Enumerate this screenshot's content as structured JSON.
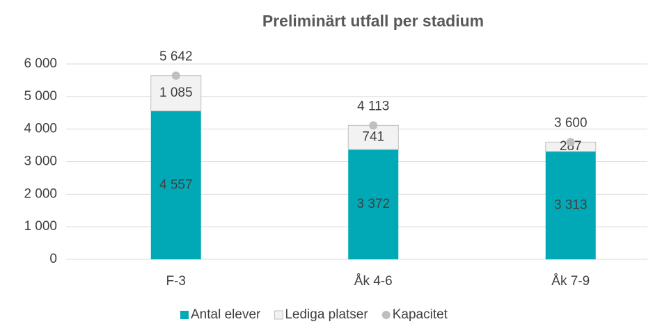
{
  "chart_data": {
    "type": "bar",
    "stacked": true,
    "title": "Preliminärt utfall per stadium",
    "categories": [
      "F-3",
      "Åk 4-6",
      "Åk 7-9"
    ],
    "series": [
      {
        "name": "Antal elever",
        "type": "bar",
        "color": "#00a9b5",
        "values": [
          4557,
          3372,
          3313
        ],
        "value_labels": [
          "4 557",
          "3 372",
          "3 313"
        ]
      },
      {
        "name": "Lediga platser",
        "type": "bar",
        "color": "#f2f2f2",
        "values": [
          1085,
          741,
          287
        ],
        "value_labels": [
          "1 085",
          "741",
          "287"
        ]
      },
      {
        "name": "Kapacitet",
        "type": "scatter",
        "color": "#bfbfbf",
        "values": [
          5642,
          4113,
          3600
        ],
        "value_labels": [
          "5 642",
          "4 113",
          "3 600"
        ]
      }
    ],
    "ylim": [
      0,
      6000
    ],
    "yticks": [
      0,
      {
        "value": 1000,
        "label": "1 000"
      },
      {
        "value": 2000,
        "label": "2 000"
      },
      {
        "value": 3000,
        "label": "3 000"
      },
      {
        "value": 4000,
        "label": "4 000"
      },
      {
        "value": 5000,
        "label": "5 000"
      },
      {
        "value": 6000,
        "label": "6 000"
      }
    ],
    "grid": true,
    "legend": "bottom"
  }
}
